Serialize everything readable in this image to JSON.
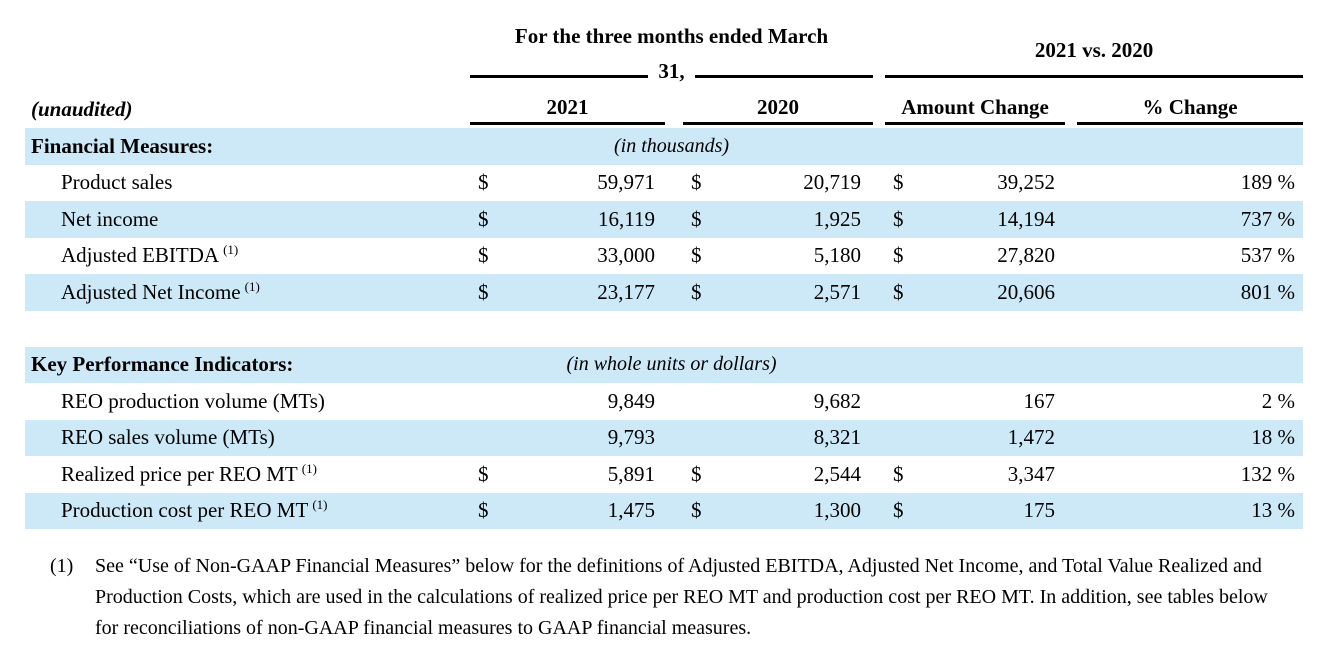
{
  "table": {
    "header": {
      "period_group_line1": "For the three months ended March",
      "period_group_line2": "31,",
      "vs_group": "2021 vs. 2020",
      "unaudited_label": "(unaudited)",
      "col_2021": "2021",
      "col_2020": "2020",
      "col_amount": "Amount Change",
      "col_pct": "% Change"
    },
    "sections": [
      {
        "title": "Financial Measures:",
        "unit_note": "(in thousands)",
        "rows": [
          {
            "label": "Product sales",
            "sup": "",
            "d1": "$",
            "v1": "59,971",
            "d2": "$",
            "v2": "20,719",
            "d3": "$",
            "amount": "39,252",
            "pct": "189 %"
          },
          {
            "label": "Net income",
            "sup": "",
            "d1": "$",
            "v1": "16,119",
            "d2": "$",
            "v2": "1,925",
            "d3": "$",
            "amount": "14,194",
            "pct": "737 %"
          },
          {
            "label": "Adjusted EBITDA",
            "sup": "(1)",
            "d1": "$",
            "v1": "33,000",
            "d2": "$",
            "v2": "5,180",
            "d3": "$",
            "amount": "27,820",
            "pct": "537 %"
          },
          {
            "label": "Adjusted Net Income",
            "sup": "(1)",
            "d1": "$",
            "v1": "23,177",
            "d2": "$",
            "v2": "2,571",
            "d3": "$",
            "amount": "20,606",
            "pct": "801 %"
          }
        ]
      },
      {
        "title": "Key Performance Indicators:",
        "unit_note": "(in whole units or dollars)",
        "rows": [
          {
            "label": "REO production volume (MTs)",
            "sup": "",
            "d1": "",
            "v1": "9,849",
            "d2": "",
            "v2": "9,682",
            "d3": "",
            "amount": "167",
            "pct": "2 %"
          },
          {
            "label": "REO sales volume (MTs)",
            "sup": "",
            "d1": "",
            "v1": "9,793",
            "d2": "",
            "v2": "8,321",
            "d3": "",
            "amount": "1,472",
            "pct": "18 %"
          },
          {
            "label": "Realized price per REO MT",
            "sup": "(1)",
            "d1": "$",
            "v1": "5,891",
            "d2": "$",
            "v2": "2,544",
            "d3": "$",
            "amount": "3,347",
            "pct": "132 %"
          },
          {
            "label": "Production cost per REO MT",
            "sup": "(1)",
            "d1": "$",
            "v1": "1,475",
            "d2": "$",
            "v2": "1,300",
            "d3": "$",
            "amount": "175",
            "pct": "13 %"
          }
        ]
      }
    ]
  },
  "footnote": {
    "marker": "(1)",
    "text": "See “Use of Non-GAAP Financial Measures” below for the definitions of Adjusted EBITDA, Adjusted Net Income, and Total Value Realized and Production Costs, which are used in the calculations of realized price per REO MT and production cost per REO MT. In addition, see tables below for reconciliations of non-GAAP financial measures to GAAP financial measures."
  },
  "colors": {
    "row_highlight": "#cde9f8",
    "rule": "#000000",
    "text": "#000000"
  }
}
